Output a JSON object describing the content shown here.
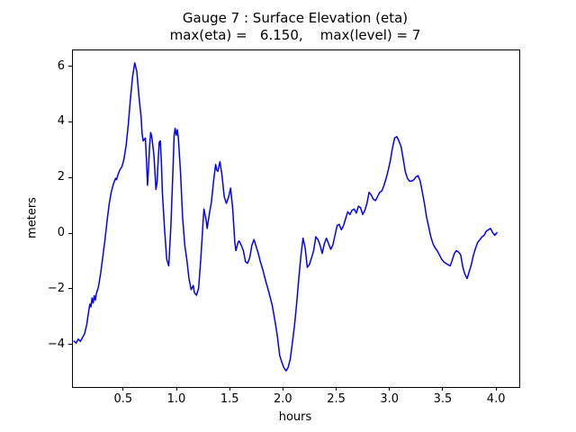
{
  "title": {
    "line1": "Gauge 7 : Surface Elevation (eta)",
    "line2": "max(eta) =   6.150,    max(level) = 7"
  },
  "chart_data": {
    "type": "line",
    "title": "Gauge 7 : Surface Elevation (eta)",
    "subtitle": "max(eta) =   6.150,    max(level) = 7",
    "xlabel": "hours",
    "ylabel": "meters",
    "xlim": [
      0.02,
      4.21
    ],
    "ylim": [
      -5.5,
      6.6
    ],
    "xticks": [
      0.5,
      1.0,
      1.5,
      2.0,
      2.5,
      3.0,
      3.5,
      4.0
    ],
    "xtick_labels": [
      "0.5",
      "1.0",
      "1.5",
      "2.0",
      "2.5",
      "3.0",
      "3.5",
      "4.0"
    ],
    "yticks": [
      -4,
      -2,
      0,
      2,
      4,
      6
    ],
    "ytick_labels": [
      "−4",
      "−2",
      "0",
      "2",
      "4",
      "6"
    ],
    "line_color": "#0000ff",
    "grid": false,
    "legend": "none",
    "max_eta": 6.15,
    "max_level": 7,
    "series": [
      {
        "name": "eta",
        "points": [
          [
            0.03,
            -3.85
          ],
          [
            0.05,
            -3.92
          ],
          [
            0.07,
            -3.78
          ],
          [
            0.09,
            -3.86
          ],
          [
            0.11,
            -3.72
          ],
          [
            0.13,
            -3.58
          ],
          [
            0.15,
            -3.25
          ],
          [
            0.17,
            -2.72
          ],
          [
            0.18,
            -2.52
          ],
          [
            0.19,
            -2.62
          ],
          [
            0.2,
            -2.3
          ],
          [
            0.21,
            -2.48
          ],
          [
            0.22,
            -2.22
          ],
          [
            0.23,
            -2.38
          ],
          [
            0.24,
            -2.15
          ],
          [
            0.26,
            -1.9
          ],
          [
            0.28,
            -1.42
          ],
          [
            0.3,
            -0.85
          ],
          [
            0.32,
            -0.25
          ],
          [
            0.34,
            0.45
          ],
          [
            0.36,
            1.05
          ],
          [
            0.38,
            1.5
          ],
          [
            0.4,
            1.8
          ],
          [
            0.42,
            2.0
          ],
          [
            0.43,
            1.95
          ],
          [
            0.44,
            2.1
          ],
          [
            0.46,
            2.3
          ],
          [
            0.48,
            2.42
          ],
          [
            0.5,
            2.7
          ],
          [
            0.52,
            3.2
          ],
          [
            0.54,
            3.95
          ],
          [
            0.56,
            4.85
          ],
          [
            0.58,
            5.65
          ],
          [
            0.6,
            6.15
          ],
          [
            0.62,
            5.85
          ],
          [
            0.64,
            4.95
          ],
          [
            0.66,
            4.2
          ],
          [
            0.67,
            3.6
          ],
          [
            0.68,
            3.35
          ],
          [
            0.7,
            3.45
          ],
          [
            0.71,
            2.7
          ],
          [
            0.72,
            1.75
          ],
          [
            0.73,
            2.35
          ],
          [
            0.74,
            3.15
          ],
          [
            0.75,
            3.65
          ],
          [
            0.76,
            3.5
          ],
          [
            0.78,
            2.85
          ],
          [
            0.8,
            1.6
          ],
          [
            0.81,
            1.85
          ],
          [
            0.82,
            2.6
          ],
          [
            0.83,
            3.3
          ],
          [
            0.84,
            3.35
          ],
          [
            0.85,
            2.6
          ],
          [
            0.86,
            1.5
          ],
          [
            0.88,
            0.2
          ],
          [
            0.9,
            -0.9
          ],
          [
            0.92,
            -1.15
          ],
          [
            0.94,
            0.3
          ],
          [
            0.96,
            2.4
          ],
          [
            0.97,
            3.55
          ],
          [
            0.98,
            3.8
          ],
          [
            0.99,
            3.55
          ],
          [
            1.0,
            3.75
          ],
          [
            1.01,
            3.45
          ],
          [
            1.03,
            2.2
          ],
          [
            1.05,
            0.6
          ],
          [
            1.07,
            -0.4
          ],
          [
            1.09,
            -0.95
          ],
          [
            1.11,
            -1.6
          ],
          [
            1.13,
            -2.0
          ],
          [
            1.15,
            -1.85
          ],
          [
            1.16,
            -2.1
          ],
          [
            1.18,
            -2.2
          ],
          [
            1.2,
            -1.95
          ],
          [
            1.22,
            -0.9
          ],
          [
            1.24,
            0.3
          ],
          [
            1.25,
            0.9
          ],
          [
            1.27,
            0.5
          ],
          [
            1.28,
            0.2
          ],
          [
            1.3,
            0.7
          ],
          [
            1.32,
            1.15
          ],
          [
            1.34,
            1.9
          ],
          [
            1.36,
            2.5
          ],
          [
            1.37,
            2.3
          ],
          [
            1.38,
            2.25
          ],
          [
            1.4,
            2.6
          ],
          [
            1.42,
            2.1
          ],
          [
            1.44,
            1.35
          ],
          [
            1.46,
            1.1
          ],
          [
            1.48,
            1.3
          ],
          [
            1.5,
            1.65
          ],
          [
            1.52,
            0.9
          ],
          [
            1.54,
            -0.3
          ],
          [
            1.55,
            -0.6
          ],
          [
            1.57,
            -0.3
          ],
          [
            1.58,
            -0.25
          ],
          [
            1.6,
            -0.4
          ],
          [
            1.62,
            -0.6
          ],
          [
            1.64,
            -1.0
          ],
          [
            1.66,
            -1.05
          ],
          [
            1.68,
            -0.85
          ],
          [
            1.7,
            -0.4
          ],
          [
            1.72,
            -0.2
          ],
          [
            1.74,
            -0.45
          ],
          [
            1.76,
            -0.7
          ],
          [
            1.78,
            -1.0
          ],
          [
            1.8,
            -1.25
          ],
          [
            1.83,
            -1.7
          ],
          [
            1.86,
            -2.1
          ],
          [
            1.89,
            -2.55
          ],
          [
            1.92,
            -3.2
          ],
          [
            1.94,
            -3.7
          ],
          [
            1.96,
            -4.35
          ],
          [
            1.98,
            -4.6
          ],
          [
            2.0,
            -4.8
          ],
          [
            2.02,
            -4.92
          ],
          [
            2.04,
            -4.8
          ],
          [
            2.06,
            -4.5
          ],
          [
            2.08,
            -3.9
          ],
          [
            2.1,
            -3.3
          ],
          [
            2.12,
            -2.5
          ],
          [
            2.14,
            -1.6
          ],
          [
            2.16,
            -0.8
          ],
          [
            2.18,
            -0.15
          ],
          [
            2.2,
            -0.5
          ],
          [
            2.22,
            -1.2
          ],
          [
            2.24,
            -1.1
          ],
          [
            2.26,
            -0.85
          ],
          [
            2.28,
            -0.6
          ],
          [
            2.3,
            -0.1
          ],
          [
            2.32,
            -0.2
          ],
          [
            2.34,
            -0.4
          ],
          [
            2.36,
            -0.7
          ],
          [
            2.38,
            -0.35
          ],
          [
            2.4,
            -0.15
          ],
          [
            2.42,
            -0.35
          ],
          [
            2.44,
            -0.55
          ],
          [
            2.46,
            -0.4
          ],
          [
            2.48,
            -0.05
          ],
          [
            2.5,
            0.3
          ],
          [
            2.52,
            0.35
          ],
          [
            2.54,
            0.15
          ],
          [
            2.56,
            0.3
          ],
          [
            2.58,
            0.55
          ],
          [
            2.6,
            0.8
          ],
          [
            2.62,
            0.7
          ],
          [
            2.64,
            0.85
          ],
          [
            2.66,
            0.9
          ],
          [
            2.68,
            0.75
          ],
          [
            2.7,
            1.0
          ],
          [
            2.72,
            0.95
          ],
          [
            2.74,
            0.7
          ],
          [
            2.76,
            0.85
          ],
          [
            2.78,
            1.1
          ],
          [
            2.8,
            1.5
          ],
          [
            2.82,
            1.4
          ],
          [
            2.84,
            1.25
          ],
          [
            2.86,
            1.2
          ],
          [
            2.88,
            1.35
          ],
          [
            2.9,
            1.5
          ],
          [
            2.92,
            1.55
          ],
          [
            2.94,
            1.75
          ],
          [
            2.96,
            2.0
          ],
          [
            2.98,
            2.3
          ],
          [
            3.0,
            2.65
          ],
          [
            3.02,
            3.1
          ],
          [
            3.04,
            3.45
          ],
          [
            3.06,
            3.5
          ],
          [
            3.08,
            3.35
          ],
          [
            3.1,
            3.15
          ],
          [
            3.12,
            2.7
          ],
          [
            3.14,
            2.25
          ],
          [
            3.16,
            2.0
          ],
          [
            3.18,
            1.9
          ],
          [
            3.2,
            1.9
          ],
          [
            3.22,
            1.95
          ],
          [
            3.24,
            2.05
          ],
          [
            3.26,
            2.1
          ],
          [
            3.28,
            1.9
          ],
          [
            3.3,
            1.5
          ],
          [
            3.32,
            1.1
          ],
          [
            3.34,
            0.6
          ],
          [
            3.36,
            0.25
          ],
          [
            3.38,
            -0.1
          ],
          [
            3.4,
            -0.35
          ],
          [
            3.42,
            -0.5
          ],
          [
            3.44,
            -0.6
          ],
          [
            3.46,
            -0.75
          ],
          [
            3.48,
            -0.9
          ],
          [
            3.5,
            -1.0
          ],
          [
            3.52,
            -1.05
          ],
          [
            3.54,
            -1.1
          ],
          [
            3.56,
            -1.15
          ],
          [
            3.58,
            -0.95
          ],
          [
            3.6,
            -0.7
          ],
          [
            3.62,
            -0.6
          ],
          [
            3.64,
            -0.65
          ],
          [
            3.66,
            -0.75
          ],
          [
            3.68,
            -1.2
          ],
          [
            3.7,
            -1.45
          ],
          [
            3.72,
            -1.6
          ],
          [
            3.74,
            -1.35
          ],
          [
            3.76,
            -1.1
          ],
          [
            3.78,
            -0.75
          ],
          [
            3.8,
            -0.5
          ],
          [
            3.82,
            -0.3
          ],
          [
            3.84,
            -0.2
          ],
          [
            3.86,
            -0.1
          ],
          [
            3.88,
            -0.05
          ],
          [
            3.9,
            0.1
          ],
          [
            3.92,
            0.15
          ],
          [
            3.94,
            0.2
          ],
          [
            3.96,
            0.05
          ],
          [
            3.98,
            -0.05
          ],
          [
            4.0,
            0.05
          ]
        ]
      }
    ]
  }
}
